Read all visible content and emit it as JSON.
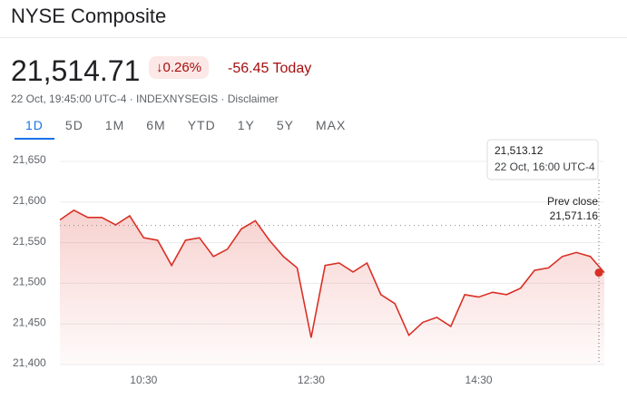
{
  "title": "NYSE Composite",
  "price": "21,514.71",
  "change_percent": "0.26%",
  "change_today": "-56.45 Today",
  "meta": "22 Oct, 19:45:00 UTC-4 · INDEXNYSEGIS · Disclaimer",
  "tabs": [
    "1D",
    "5D",
    "1M",
    "6M",
    "YTD",
    "1Y",
    "5Y",
    "MAX"
  ],
  "selected_tab": 0,
  "chart_data": {
    "type": "line",
    "color": "#d93025",
    "x": [
      "09:30",
      "09:40",
      "09:50",
      "10:00",
      "10:10",
      "10:20",
      "10:30",
      "10:40",
      "10:50",
      "11:00",
      "11:10",
      "11:20",
      "11:30",
      "11:40",
      "11:50",
      "12:00",
      "12:10",
      "12:20",
      "12:30",
      "12:40",
      "12:50",
      "13:00",
      "13:10",
      "13:20",
      "13:30",
      "13:40",
      "13:50",
      "14:00",
      "14:10",
      "14:20",
      "14:30",
      "14:40",
      "14:50",
      "15:00",
      "15:10",
      "15:20",
      "15:30",
      "15:40",
      "15:50",
      "16:00"
    ],
    "values": [
      21578,
      21590,
      21581,
      21581,
      21572,
      21583,
      21556,
      21553,
      21522,
      21553,
      21556,
      21533,
      21542,
      21567,
      21577,
      21553,
      21533,
      21519,
      21433,
      21522,
      21525,
      21514,
      21525,
      21486,
      21475,
      21436,
      21452,
      21458,
      21447,
      21486,
      21483,
      21489,
      21486,
      21494,
      21516,
      21519,
      21533,
      21538,
      21533,
      21513.12
    ],
    "xlim": [
      "09:30",
      "16:00"
    ],
    "xticks": [
      "10:30",
      "12:30",
      "14:30"
    ],
    "ylim": [
      21400,
      21650
    ],
    "yticks": [
      {
        "value": 21400,
        "label": "21,400"
      },
      {
        "value": 21450,
        "label": "21,450"
      },
      {
        "value": 21500,
        "label": "21,500"
      },
      {
        "value": 21550,
        "label": "21,550"
      },
      {
        "value": 21600,
        "label": "21,600"
      },
      {
        "value": 21650,
        "label": "21,650"
      }
    ],
    "grid": true,
    "prev_close": {
      "value": 21571.16,
      "label": "21,571.16"
    },
    "prev_close_text": "Prev close",
    "tooltip": {
      "value": "21,513.12",
      "time": "22 Oct, 16:00 UTC-4"
    }
  }
}
